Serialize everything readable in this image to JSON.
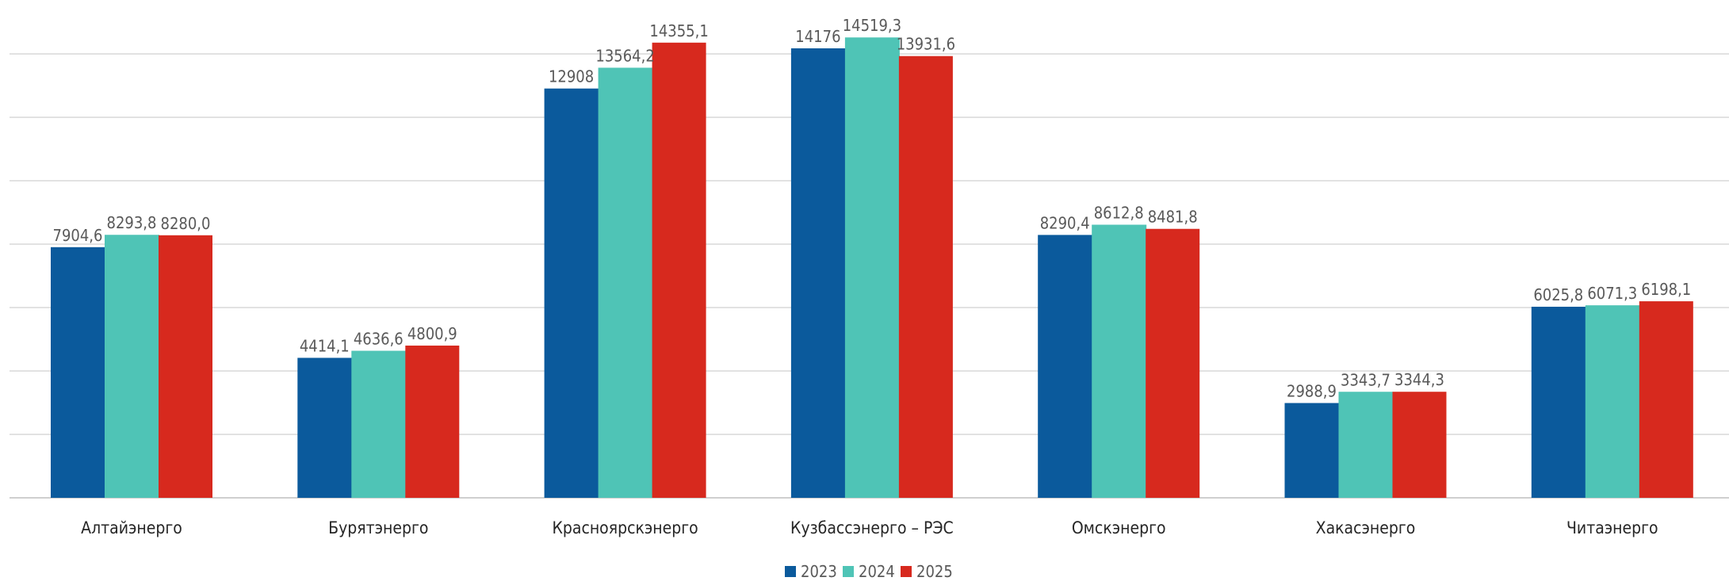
{
  "chart_data": {
    "type": "bar",
    "categories": [
      "Алтайэнерго",
      "Бурятэнерго",
      "Красноярскэнерго",
      "Кузбассэнерго – РЭС",
      "Омскэнерго",
      "Хакасэнерго",
      "Читаэнерго"
    ],
    "series": [
      {
        "name": "2023",
        "color": "#0b5a9c",
        "values": [
          7904.6,
          4414.1,
          12908,
          14176,
          8290.4,
          2988.9,
          6025.8
        ],
        "labels": [
          "7904,6",
          "4414,1",
          "12908",
          "14176",
          "8290,4",
          "2988,9",
          "6025,8"
        ]
      },
      {
        "name": "2024",
        "color": "#4fc4b6",
        "values": [
          8293.8,
          4636.6,
          13564.2,
          14519.3,
          8612.8,
          3343.7,
          6071.3
        ],
        "labels": [
          "8293,8",
          "4636,6",
          "13564,2",
          "14519,3",
          "8612,8",
          "3343,7",
          "6071,3"
        ]
      },
      {
        "name": "2025",
        "color": "#d7291e",
        "values": [
          8280.0,
          4800.9,
          14355.1,
          13931.6,
          8481.8,
          3344.3,
          6198.1
        ],
        "labels": [
          "8280,0",
          "4800,9",
          "14355,1",
          "13931,6",
          "8481,8",
          "3344,3",
          "6198,1"
        ]
      }
    ],
    "ylim": [
      0,
      14000
    ],
    "gridlines": [
      0,
      2000,
      4000,
      6000,
      8000,
      10000,
      12000,
      14000
    ],
    "grid": true,
    "legend": "bottom-center"
  }
}
